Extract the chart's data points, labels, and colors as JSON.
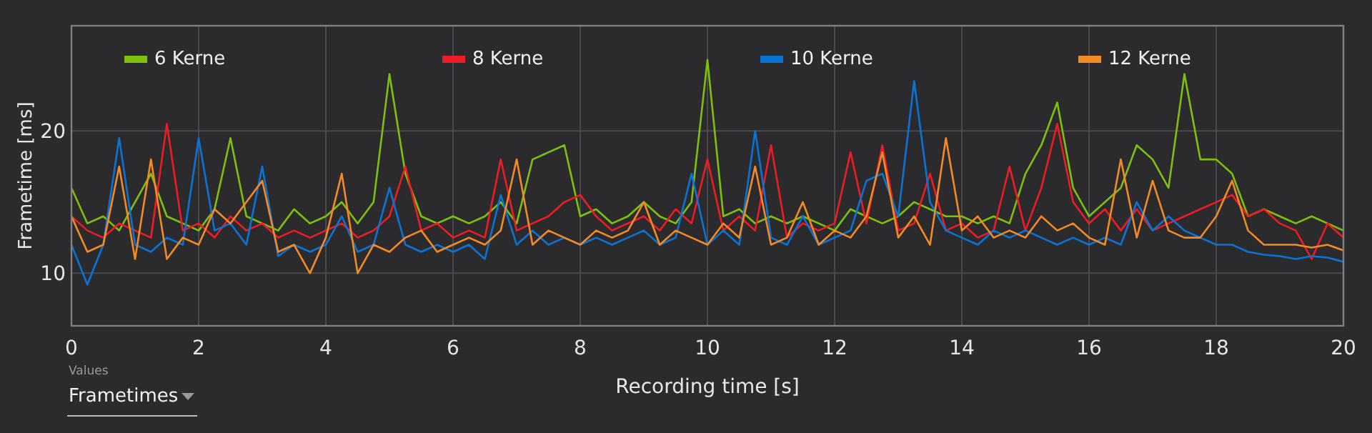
{
  "chart_data": {
    "type": "line",
    "xlabel": "Recording time [s]",
    "ylabel": "Frametime [ms]",
    "x": [
      0,
      0.25,
      0.5,
      0.75,
      1,
      1.25,
      1.5,
      1.75,
      2,
      2.25,
      2.5,
      2.75,
      3,
      3.25,
      3.5,
      3.75,
      4,
      4.25,
      4.5,
      4.75,
      5,
      5.25,
      5.5,
      5.75,
      6,
      6.25,
      6.5,
      6.75,
      7,
      7.25,
      7.5,
      7.75,
      8,
      8.25,
      8.5,
      8.75,
      9,
      9.25,
      9.5,
      9.75,
      10,
      10.25,
      10.5,
      10.75,
      11,
      11.25,
      11.5,
      11.75,
      12,
      12.25,
      12.5,
      12.75,
      13,
      13.25,
      13.5,
      13.75,
      14,
      14.25,
      14.5,
      14.75,
      15,
      15.25,
      15.5,
      15.75,
      16,
      16.25,
      16.5,
      16.75,
      17,
      17.25,
      17.5,
      17.75,
      18,
      18.25,
      18.5,
      18.75,
      19,
      19.25,
      19.5,
      19.75,
      20
    ],
    "series": [
      {
        "name": "6 Kerne",
        "color": "#7dc10d",
        "values": [
          16,
          13.5,
          14,
          13,
          15,
          17,
          14,
          13.5,
          13,
          14.5,
          19.5,
          14,
          13.5,
          13,
          14.5,
          13.5,
          14,
          15,
          13.5,
          15,
          24,
          17,
          14,
          13.5,
          14,
          13.5,
          14,
          15,
          13.5,
          18,
          18.5,
          19,
          14,
          14.5,
          13.5,
          14,
          15,
          14,
          13.5,
          15,
          25,
          14,
          14.5,
          13.5,
          14,
          13.5,
          14,
          13.5,
          13,
          14.5,
          14,
          13.5,
          14,
          15,
          14.5,
          14,
          14,
          13.5,
          14,
          13.5,
          17,
          19,
          22,
          16,
          14,
          15,
          16,
          19,
          18,
          16,
          24,
          18,
          18,
          17,
          14,
          14.5,
          14,
          13.5,
          14,
          13.5,
          13
        ]
      },
      {
        "name": "8 Kerne",
        "color": "#ee1c24",
        "values": [
          14,
          13,
          12.5,
          13.5,
          13,
          12.5,
          20.5,
          13,
          13.5,
          12.5,
          14,
          13,
          13.5,
          12.5,
          13,
          12.5,
          13,
          13.5,
          12.5,
          13,
          14,
          17.5,
          13,
          13.5,
          12.5,
          13,
          12.5,
          18,
          13,
          13.5,
          14,
          15,
          15.5,
          14,
          13,
          13.5,
          14,
          13,
          14.5,
          13.5,
          18,
          13,
          14,
          13,
          19,
          12.5,
          13.5,
          13,
          13.5,
          18.5,
          13.5,
          19,
          13,
          13.5,
          17,
          13,
          13.5,
          12.5,
          13,
          17.5,
          13,
          16,
          20.5,
          15,
          13.5,
          14.5,
          13,
          14.5,
          13,
          13.5,
          14,
          14.5,
          15,
          15.5,
          14,
          14.5,
          13.5,
          13,
          11,
          13.5,
          12.5
        ]
      },
      {
        "name": "10 Kerne",
        "color": "#0a74d6",
        "values": [
          12,
          9.2,
          12,
          19.5,
          12,
          11.5,
          12.5,
          12,
          19.5,
          13,
          13.5,
          12,
          17.5,
          11.2,
          12,
          11.5,
          12,
          14,
          11.5,
          12,
          16,
          12,
          11.5,
          12,
          11.5,
          12,
          11,
          15.5,
          12,
          13,
          12,
          12.5,
          12,
          12.5,
          12,
          12.5,
          13,
          12,
          12.5,
          17,
          12,
          13,
          12,
          20,
          12.5,
          12,
          14,
          12,
          12.5,
          13,
          16.5,
          17,
          14,
          23.5,
          15,
          13,
          12.5,
          12,
          13,
          12.5,
          13,
          12.5,
          12,
          12.5,
          12,
          12.5,
          12,
          15,
          13,
          14,
          13,
          12.5,
          12,
          12,
          11.5,
          11.3,
          11.2,
          11,
          11.2,
          11.1,
          10.8
        ]
      },
      {
        "name": "12 Kerne",
        "color": "#f38a24",
        "values": [
          14,
          11.5,
          12,
          17.5,
          11,
          18,
          11,
          12.5,
          12,
          14.5,
          13.5,
          15,
          16.5,
          11.5,
          12,
          10,
          12.5,
          17,
          10,
          12,
          11.5,
          12.5,
          13,
          11.5,
          12,
          12.5,
          12,
          13,
          18,
          12,
          13,
          12.5,
          12,
          13,
          12.5,
          13,
          15,
          12,
          13,
          12.5,
          12,
          13.5,
          12.5,
          17.5,
          12,
          12.5,
          15,
          12,
          13,
          12.5,
          14,
          18.5,
          12.5,
          14,
          12,
          19.5,
          13,
          14,
          12.5,
          13,
          12.5,
          14,
          13,
          13.5,
          12.5,
          12,
          18,
          12.5,
          16.5,
          13,
          12.5,
          12.5,
          14,
          16.5,
          13,
          12,
          12,
          12,
          11.8,
          12,
          11.6
        ]
      }
    ],
    "xlim": [
      0,
      20
    ],
    "xticks": [
      0,
      2,
      4,
      6,
      8,
      10,
      12,
      14,
      16,
      18,
      20
    ],
    "ylim": [
      6.3,
      27.4
    ],
    "yticks": [
      10,
      20
    ],
    "grid": true,
    "legend": "top",
    "marker": "none",
    "line_style": "solid",
    "annotations": [
      "Values",
      "Frametimes"
    ]
  }
}
